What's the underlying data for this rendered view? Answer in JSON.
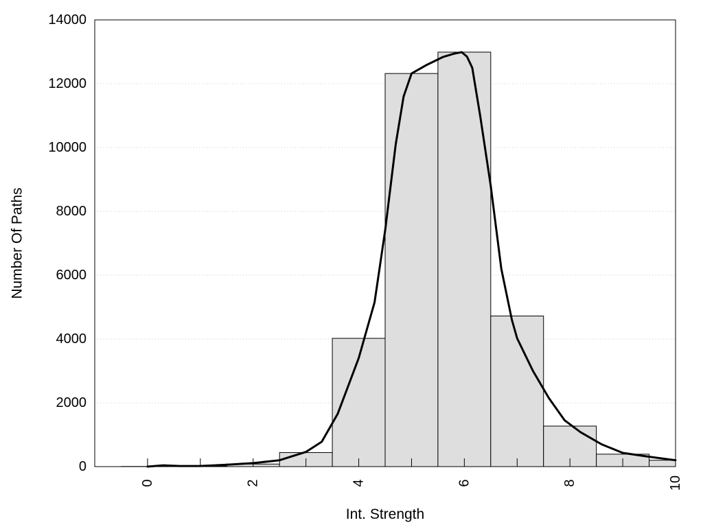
{
  "chart_data": {
    "type": "bar",
    "title": "",
    "xlabel": "Int. Strength",
    "ylabel": "Number Of Paths",
    "xlim": [
      -1,
      10
    ],
    "ylim": [
      0,
      14000
    ],
    "x_ticks": [
      0,
      2,
      4,
      6,
      8,
      10
    ],
    "y_ticks": [
      0,
      2000,
      4000,
      6000,
      8000,
      10000,
      12000,
      14000
    ],
    "grid": "horizontal dotted",
    "legend": "none",
    "bin_width": 1,
    "bins": [
      {
        "center": 0,
        "value": 5
      },
      {
        "center": 1,
        "value": 15
      },
      {
        "center": 2,
        "value": 80
      },
      {
        "center": 3,
        "value": 440
      },
      {
        "center": 4,
        "value": 4020
      },
      {
        "center": 5,
        "value": 12320
      },
      {
        "center": 6,
        "value": 12990
      },
      {
        "center": 7,
        "value": 4720
      },
      {
        "center": 8,
        "value": 1270
      },
      {
        "center": 9,
        "value": 390
      },
      {
        "center": 10,
        "value": 200
      }
    ],
    "curve": {
      "x": [
        0,
        0.3,
        0.6,
        1,
        1.5,
        2,
        2.5,
        3,
        3.3,
        3.6,
        4,
        4.3,
        4.5,
        4.7,
        4.85,
        5,
        5.3,
        5.6,
        5.8,
        5.95,
        6.05,
        6.15,
        6.3,
        6.5,
        6.7,
        6.9,
        7,
        7.3,
        7.6,
        7.9,
        8.2,
        8.6,
        9,
        9.5,
        10
      ],
      "y": [
        0,
        40,
        20,
        20,
        60,
        110,
        200,
        460,
        780,
        1650,
        3400,
        5150,
        7400,
        10100,
        11600,
        12320,
        12600,
        12840,
        12940,
        12990,
        12850,
        12500,
        11000,
        8800,
        6200,
        4600,
        4020,
        3000,
        2150,
        1450,
        1080,
        700,
        430,
        310,
        200
      ],
      "color": "#000000"
    },
    "bar_fill": "#dedede",
    "bar_stroke": "#000000"
  }
}
